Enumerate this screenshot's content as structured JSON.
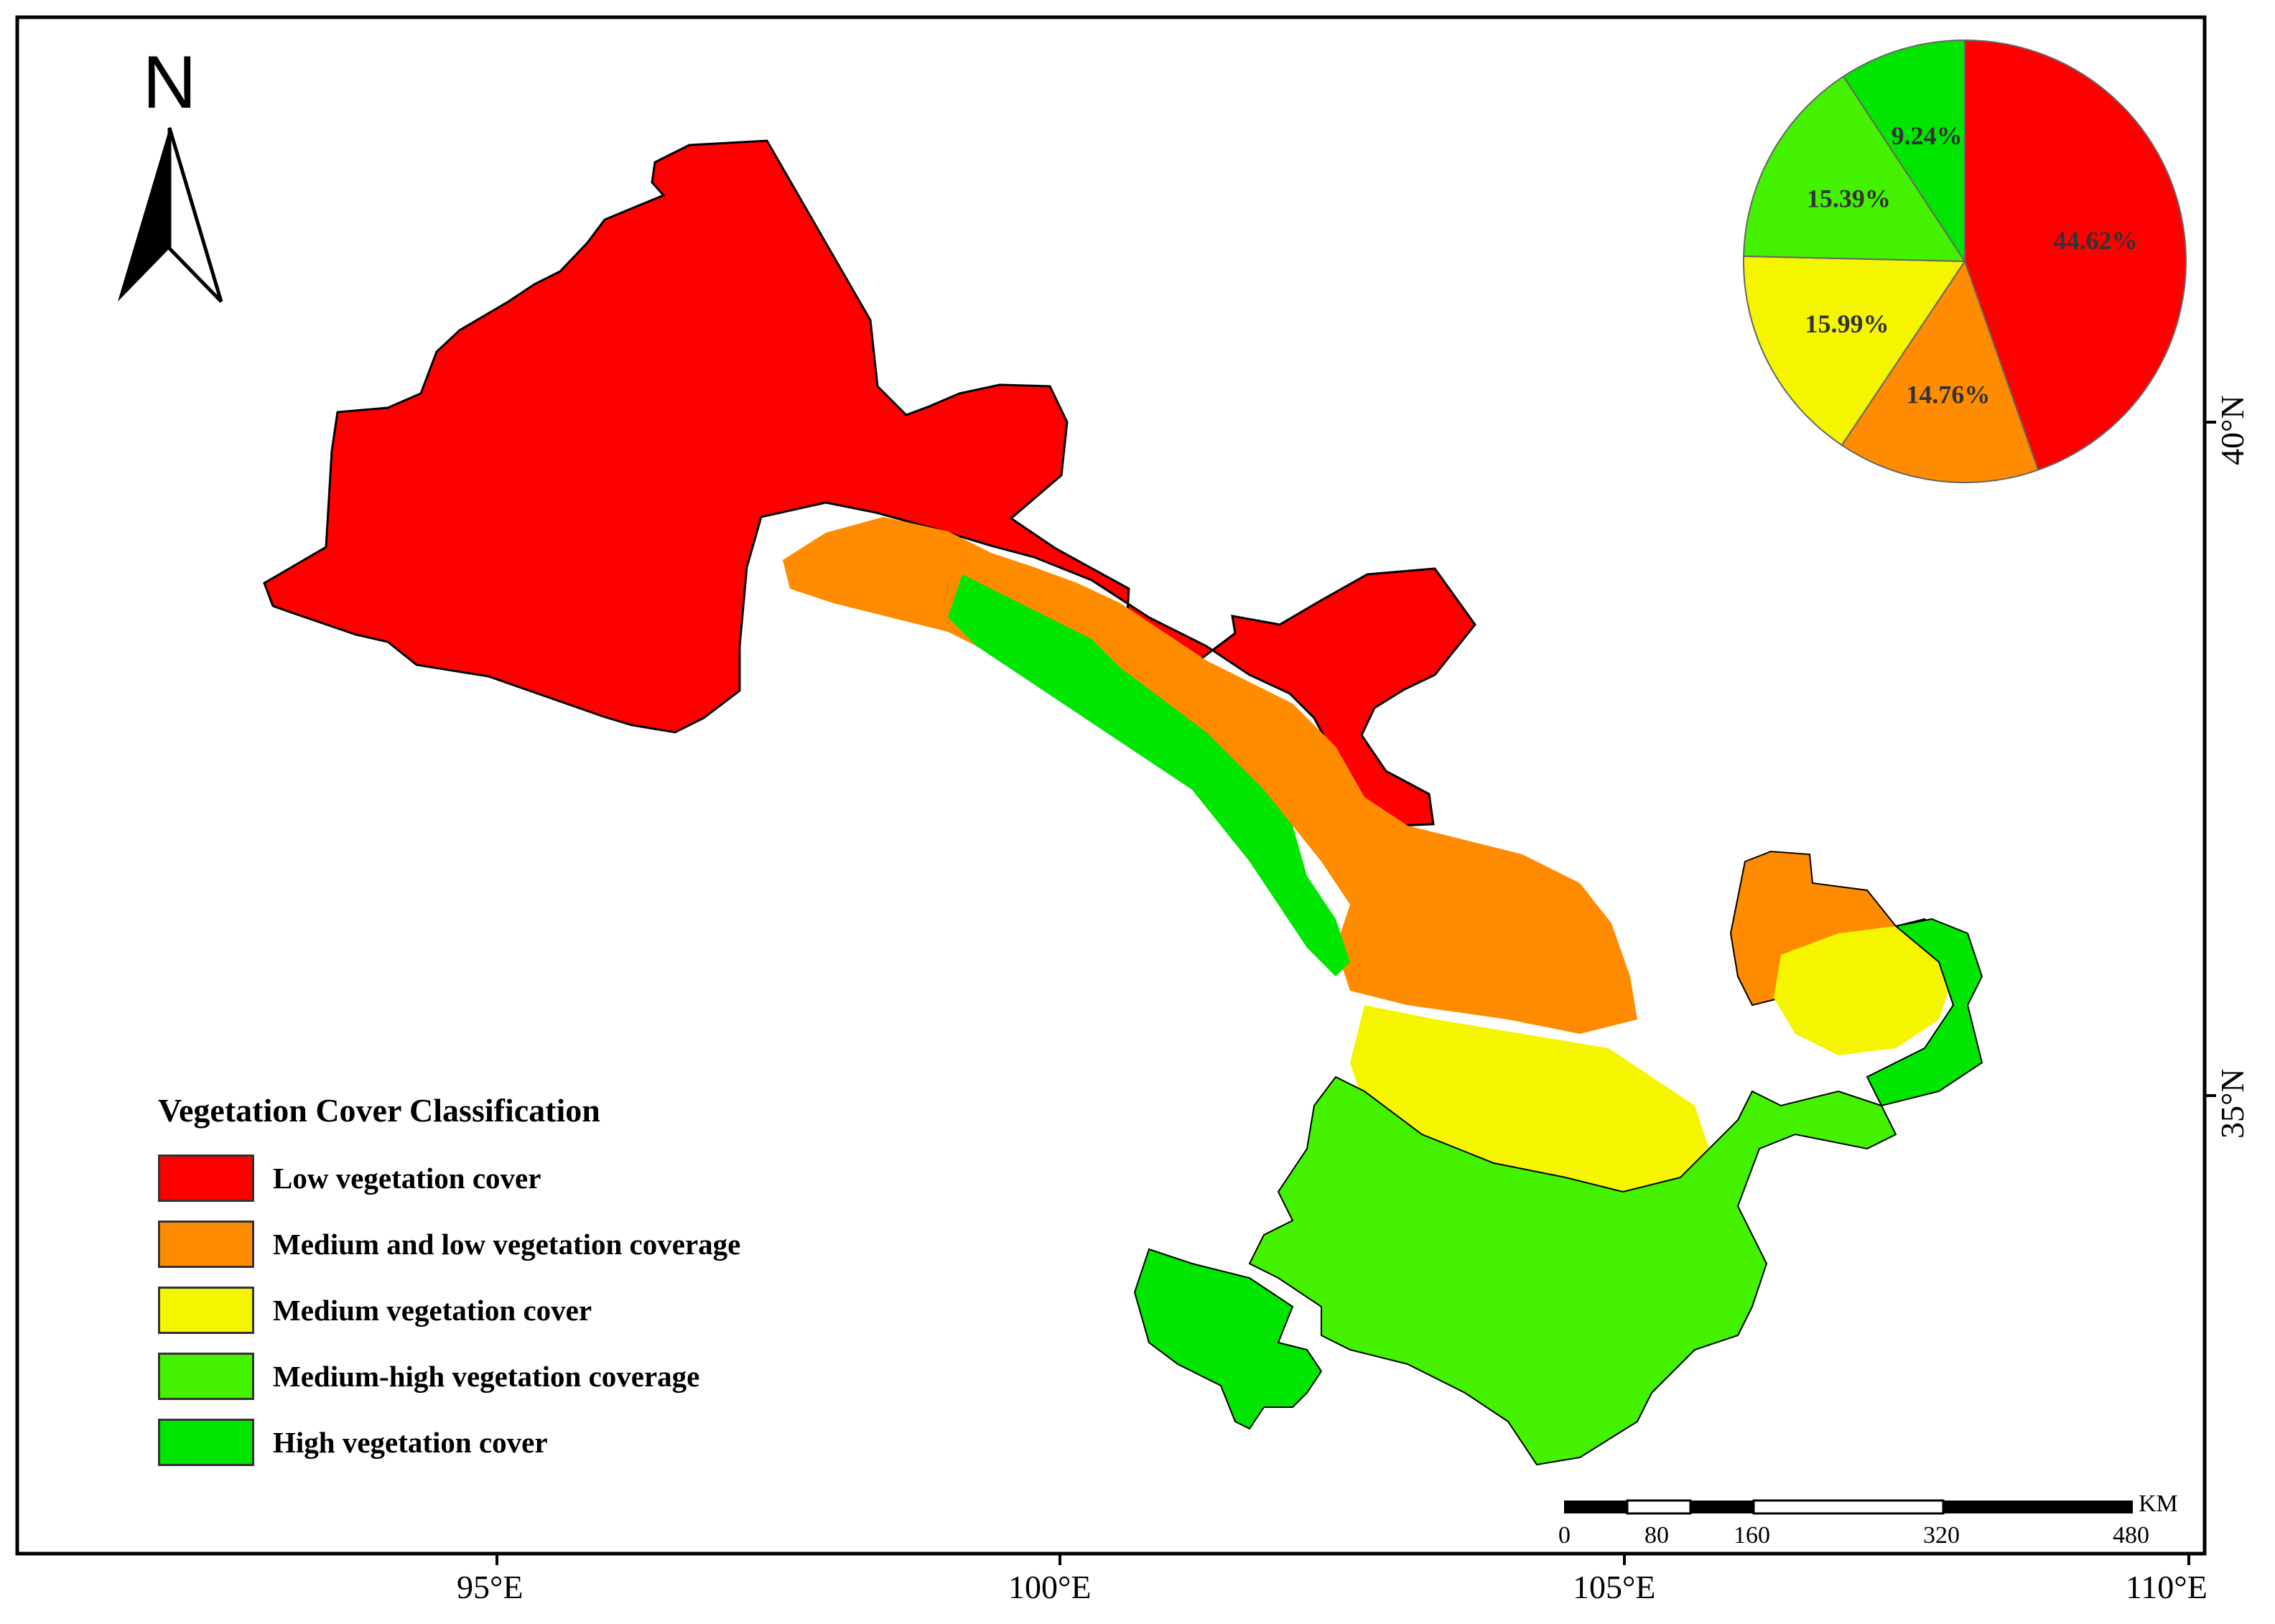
{
  "north_arrow": {
    "letter": "N"
  },
  "legend": {
    "title": "Vegetation Cover Classification",
    "items": [
      {
        "label": "Low vegetation cover",
        "color": "#ff0000"
      },
      {
        "label": "Medium and low vegetation coverage",
        "color": "#ff8c00"
      },
      {
        "label": "Medium vegetation cover",
        "color": "#f5f500"
      },
      {
        "label": "Medium-high vegetation coverage",
        "color": "#44f200"
      },
      {
        "label": "High vegetation cover",
        "color": "#00e600"
      }
    ]
  },
  "chart_data": {
    "type": "pie",
    "slices": [
      {
        "label": "44.62%",
        "value": 44.62,
        "color": "#ff0000"
      },
      {
        "label": "14.76%",
        "value": 14.76,
        "color": "#ff8c00"
      },
      {
        "label": "15.99%",
        "value": 15.99,
        "color": "#f5f500"
      },
      {
        "label": "15.39%",
        "value": 15.39,
        "color": "#44f200"
      },
      {
        "label": "9.24%",
        "value": 9.24,
        "color": "#00e600"
      }
    ]
  },
  "axes": {
    "longitude": [
      "95°E",
      "100°E",
      "105°E",
      "110°E"
    ],
    "latitude": [
      "40°N",
      "35°N"
    ]
  },
  "scale_bar": {
    "unit": "KM",
    "ticks": [
      "0",
      "80",
      "160",
      "320",
      "480"
    ]
  }
}
